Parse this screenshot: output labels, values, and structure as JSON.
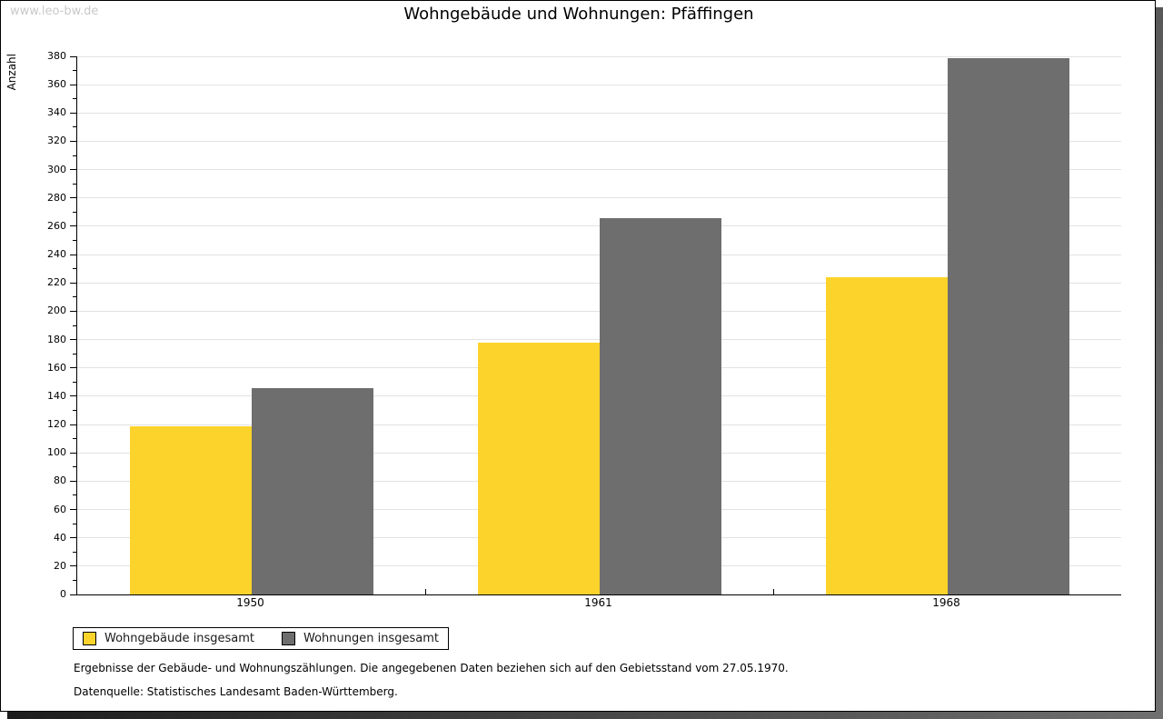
{
  "watermark": "www.leo-bw.de",
  "title": "Wohngebäude und Wohnungen: Pfäffingen",
  "chart_data": {
    "type": "bar",
    "title": "Wohngebäude und Wohnungen: Pfäffingen",
    "categories": [
      "1950",
      "1961",
      "1968"
    ],
    "series": [
      {
        "name": "Wohngebäude insgesamt",
        "key": "wohngebaeude",
        "color": "#FCD32B",
        "values": [
          119,
          178,
          224
        ]
      },
      {
        "name": "Wohnungen insgesamt",
        "key": "wohnungen",
        "color": "#6E6E6E",
        "values": [
          146,
          266,
          379
        ]
      }
    ],
    "xlabel": "",
    "ylabel": "Anzahl",
    "ylim": [
      0,
      380
    ],
    "y_major_step": 20,
    "y_minor_step": 10,
    "grid": "horizontal-major-gridlines",
    "legend_position": "bottom-left"
  },
  "footnotes": {
    "line1": "Ergebnisse der Gebäude- und Wohnungszählungen. Die angegebenen Daten beziehen sich auf den Gebietsstand vom 27.05.1970.",
    "line2": "Datenquelle: Statistisches Landesamt Baden-Württemberg."
  },
  "colors": {
    "bar_yellow": "#FCD32B",
    "bar_gray": "#6E6E6E",
    "gridline": "#E2E2E2",
    "watermark": "#C9C9C9",
    "axis": "#000000"
  }
}
